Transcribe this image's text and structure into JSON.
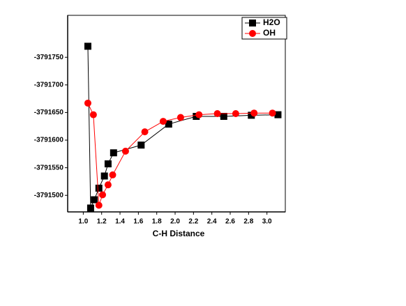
{
  "chart_data": {
    "type": "line",
    "x_label": "C-H Distance",
    "xlim": [
      0.83,
      3.2
    ],
    "xticks": [
      {
        "value": 1,
        "label": "1.0"
      },
      1.2,
      1.4,
      1.6,
      1.8,
      {
        "value": 2,
        "label": "2.0"
      },
      2.2,
      2.4,
      2.6,
      2.8,
      {
        "value": 3,
        "label": "3.0"
      }
    ],
    "ylim": [
      -3791470,
      -3791826
    ],
    "yticks": [
      -3791500,
      -3791550,
      -3791600,
      -3791650,
      -3791700,
      -3791750
    ],
    "legend": "top-right",
    "series": [
      {
        "name": "H2O",
        "color": "#000000",
        "marker": "square",
        "x": [
          1.05,
          1.08,
          1.12,
          1.17,
          1.23,
          1.27,
          1.33,
          1.63,
          1.93,
          2.23,
          2.53,
          2.83,
          3.12
        ],
        "values": [
          -3791770,
          -3791477,
          -3791492,
          -3791513,
          -3791535,
          -3791557,
          -3791577,
          -3791591,
          -3791629,
          -3791643,
          -3791643,
          -3791645,
          -3791646
        ]
      },
      {
        "name": "OH",
        "color": "#ff0000",
        "marker": "circle",
        "x": [
          1.05,
          1.11,
          1.17,
          1.21,
          1.27,
          1.32,
          1.46,
          1.67,
          1.87,
          2.06,
          2.26,
          2.46,
          2.66,
          2.86,
          3.06
        ],
        "values": [
          -3791667,
          -3791646,
          -3791482,
          -3791501,
          -3791519,
          -3791537,
          -3791580,
          -3791615,
          -3791634,
          -3791641,
          -3791646,
          -3791648,
          -3791648,
          -3791649,
          -3791649
        ]
      }
    ]
  }
}
